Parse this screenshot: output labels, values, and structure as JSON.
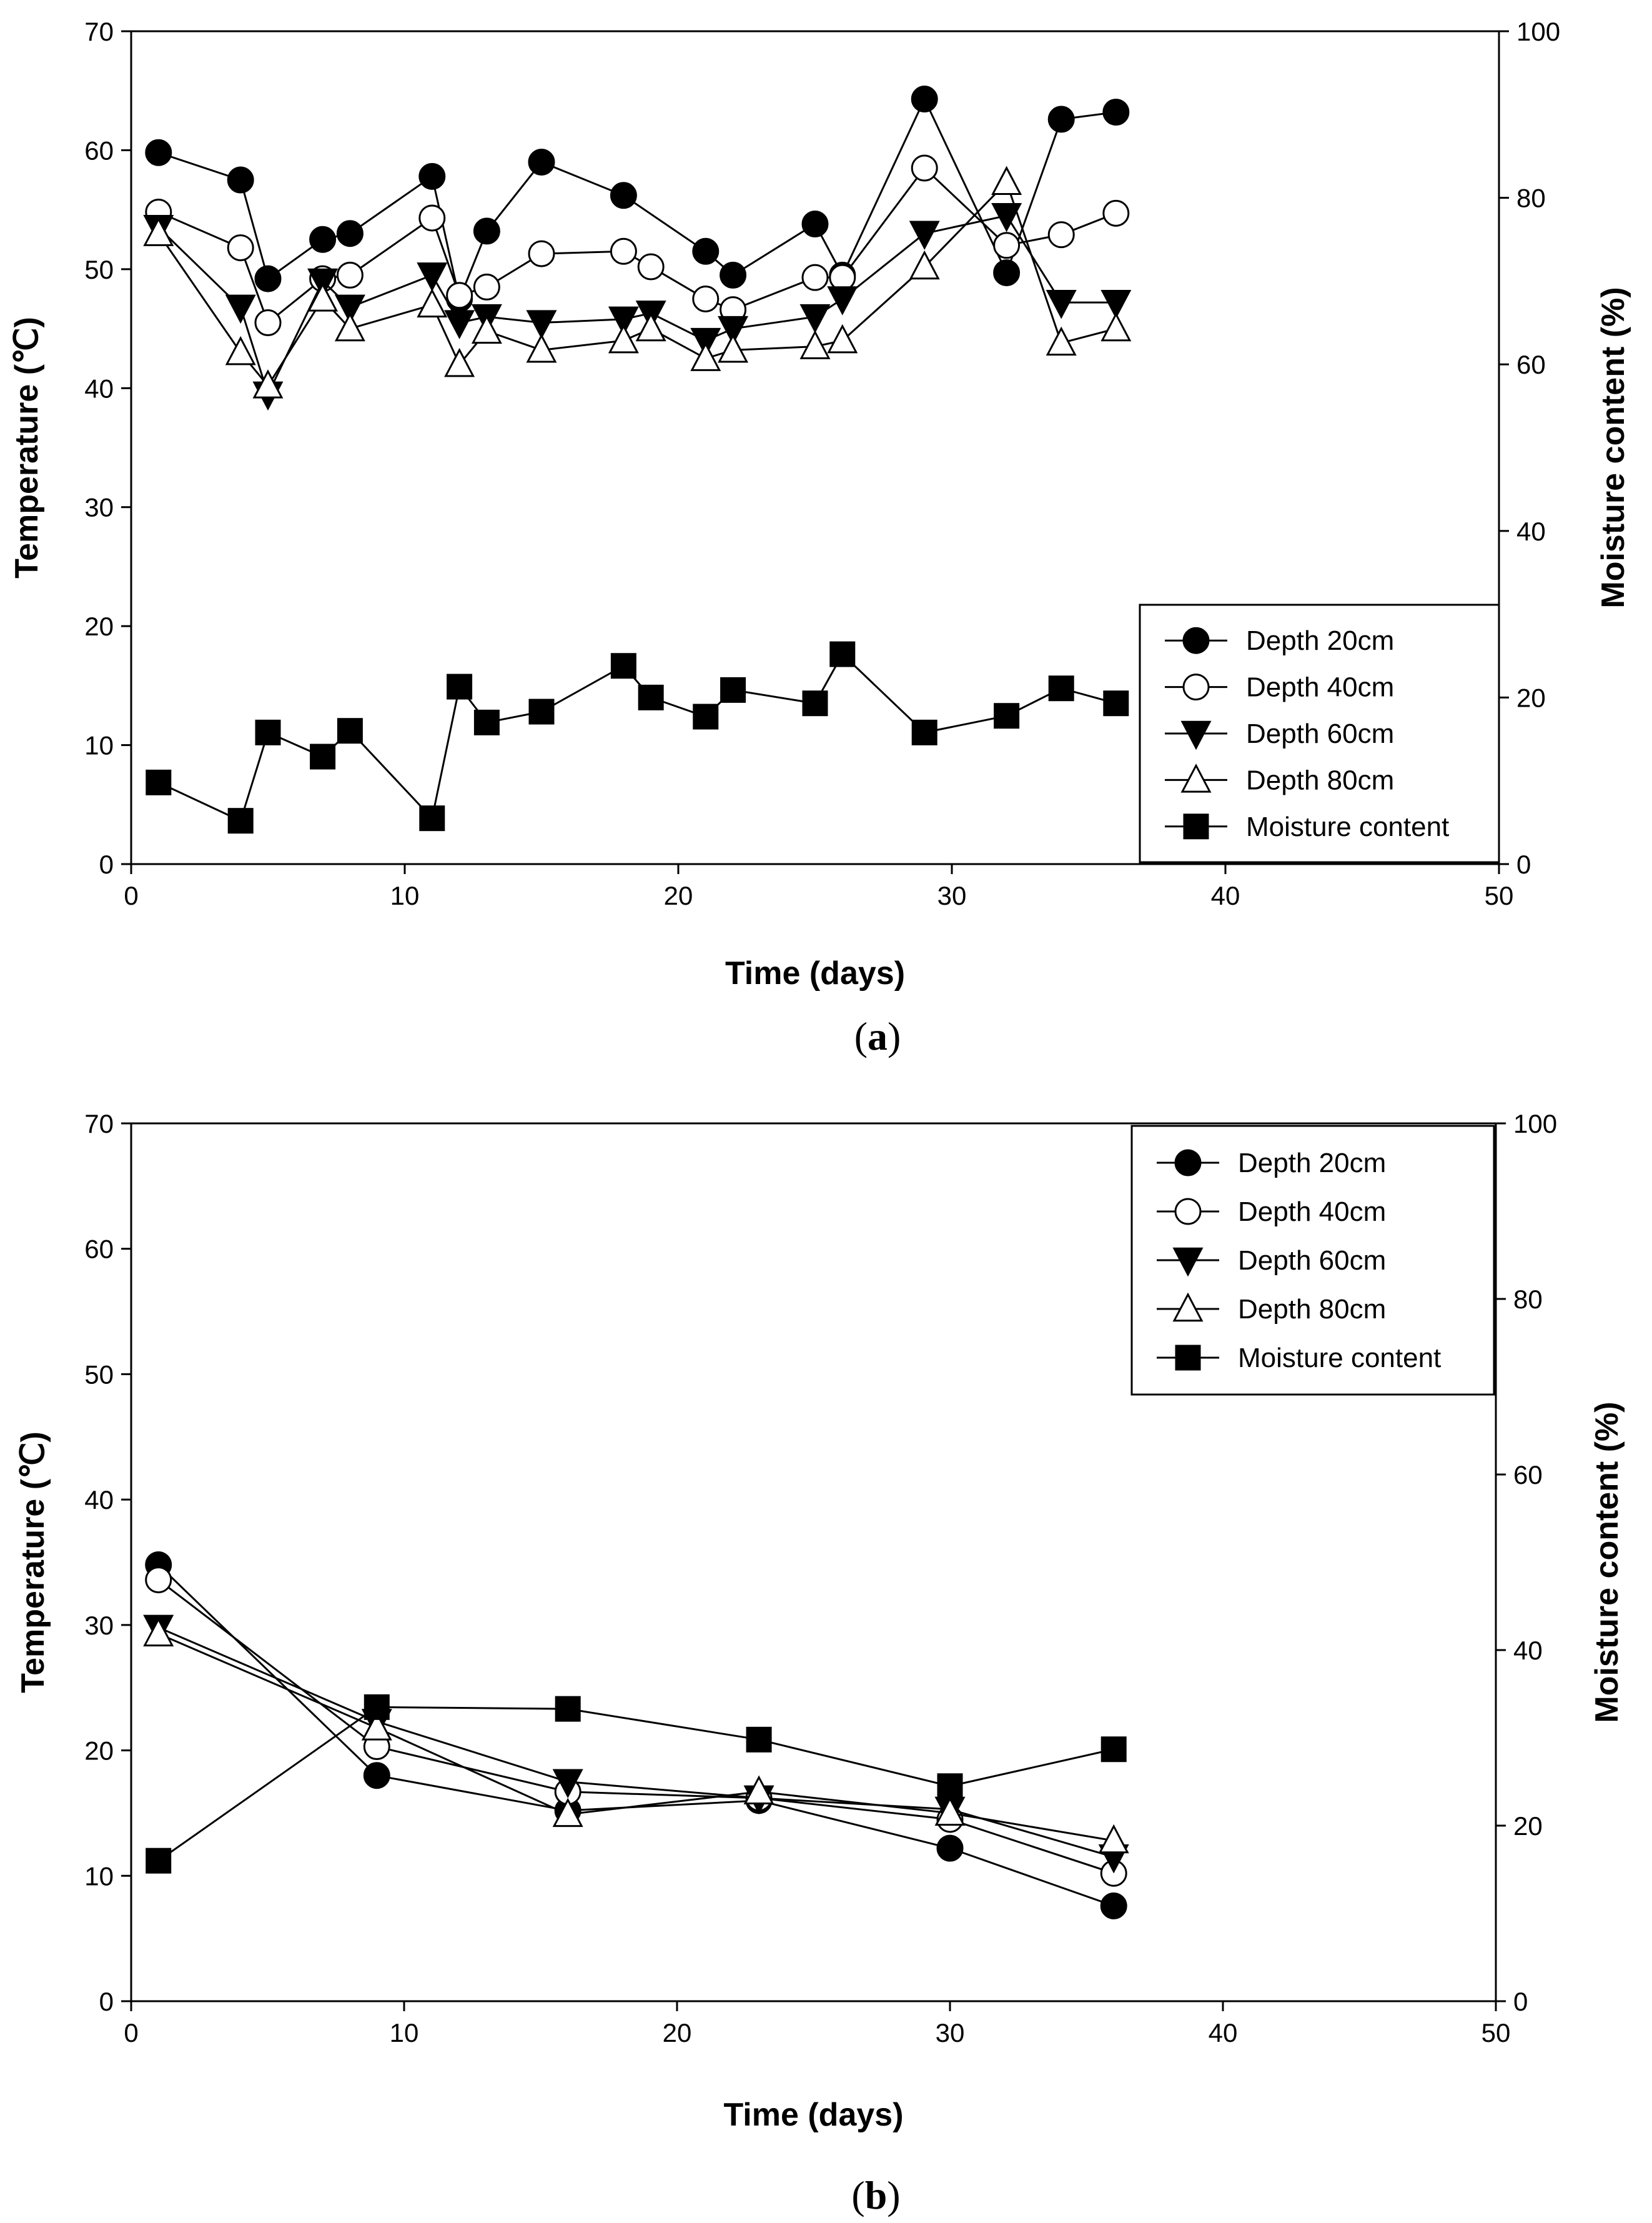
{
  "chart_data": [
    {
      "type": "line",
      "panel_label": "a",
      "xlabel": "Time (days)",
      "ylabel": "Temperature (℃)",
      "y2label": "Moisture content (%)",
      "xlim": [
        0,
        50
      ],
      "ylim": [
        0,
        70
      ],
      "y2lim": [
        0,
        100
      ],
      "xticks": [
        0,
        10,
        20,
        30,
        40,
        50
      ],
      "yticks": [
        0,
        10,
        20,
        30,
        40,
        50,
        60,
        70
      ],
      "y2ticks": [
        0,
        20,
        40,
        60,
        80,
        100
      ],
      "grid": false,
      "legend_position": "bottom-right",
      "series": [
        {
          "name": "Depth 20cm",
          "axis": "left",
          "marker": "circle-filled",
          "x": [
            1,
            4,
            5,
            7,
            8,
            11,
            12,
            13,
            15,
            18,
            21,
            22,
            25,
            26,
            29,
            32,
            34,
            36
          ],
          "y": [
            59.8,
            57.5,
            49.2,
            52.5,
            53.0,
            57.8,
            47.5,
            53.2,
            59.0,
            56.2,
            51.5,
            49.5,
            53.8,
            49.5,
            64.3,
            49.7,
            62.6,
            63.2
          ]
        },
        {
          "name": "Depth 40cm",
          "axis": "left",
          "marker": "circle-open",
          "x": [
            1,
            4,
            5,
            7,
            8,
            11,
            12,
            13,
            15,
            18,
            19,
            21,
            22,
            25,
            26,
            29,
            32,
            34,
            36
          ],
          "y": [
            54.8,
            51.8,
            45.5,
            49.2,
            49.5,
            54.3,
            47.8,
            48.5,
            51.3,
            51.5,
            50.2,
            47.5,
            46.6,
            49.3,
            49.3,
            58.5,
            52.0,
            52.9,
            54.7
          ]
        },
        {
          "name": "Depth 60cm",
          "axis": "left",
          "marker": "triangle-down-filled",
          "x": [
            1,
            4,
            5,
            7,
            8,
            11,
            12,
            13,
            15,
            18,
            19,
            21,
            22,
            25,
            26,
            29,
            32,
            34,
            36
          ],
          "y": [
            53.5,
            46.8,
            39.5,
            49.0,
            46.8,
            49.5,
            45.5,
            46.0,
            45.5,
            45.8,
            46.3,
            44.0,
            45.0,
            46.0,
            47.5,
            53.0,
            54.5,
            47.2,
            47.2
          ]
        },
        {
          "name": "Depth 80cm",
          "axis": "left",
          "marker": "triangle-up-open",
          "x": [
            1,
            4,
            5,
            7,
            8,
            11,
            12,
            13,
            15,
            18,
            19,
            21,
            22,
            25,
            26,
            29,
            32,
            34,
            36
          ],
          "y": [
            53.0,
            43.0,
            40.2,
            47.5,
            45.0,
            47.0,
            42.0,
            44.8,
            43.2,
            44.0,
            45.0,
            42.5,
            43.2,
            43.5,
            44.0,
            50.2,
            57.3,
            43.8,
            45.0
          ]
        },
        {
          "name": "Moisture content",
          "axis": "right",
          "marker": "square-filled",
          "x": [
            1,
            4,
            5,
            7,
            8,
            11,
            12,
            13,
            15,
            18,
            19,
            21,
            22,
            25,
            26,
            29,
            32,
            34,
            36
          ],
          "y": [
            9.8,
            5.2,
            15.8,
            12.9,
            16.0,
            5.5,
            21.3,
            17.0,
            18.3,
            23.8,
            20.0,
            17.7,
            20.9,
            19.3,
            25.2,
            15.8,
            17.8,
            21.1,
            19.3
          ]
        }
      ]
    },
    {
      "type": "line",
      "panel_label": "b",
      "xlabel": "Time (days)",
      "ylabel": "Temperature (℃)",
      "y2label": "Moisture content (%)",
      "xlim": [
        0,
        50
      ],
      "ylim": [
        0,
        70
      ],
      "y2lim": [
        0,
        100
      ],
      "xticks": [
        0,
        10,
        20,
        30,
        40,
        50
      ],
      "yticks": [
        0,
        10,
        20,
        30,
        40,
        50,
        60,
        70
      ],
      "y2ticks": [
        0,
        20,
        40,
        60,
        80,
        100
      ],
      "grid": false,
      "legend_position": "top-right",
      "series": [
        {
          "name": "Depth 20cm",
          "axis": "left",
          "marker": "circle-filled",
          "x": [
            1,
            9,
            16,
            23,
            30,
            36
          ],
          "y": [
            34.8,
            18.0,
            15.2,
            16.0,
            12.2,
            7.6
          ]
        },
        {
          "name": "Depth 40cm",
          "axis": "left",
          "marker": "circle-open",
          "x": [
            1,
            9,
            16,
            23,
            30,
            36
          ],
          "y": [
            33.6,
            20.3,
            16.7,
            16.2,
            14.5,
            10.2
          ]
        },
        {
          "name": "Depth 60cm",
          "axis": "left",
          "marker": "triangle-down-filled",
          "x": [
            1,
            9,
            16,
            23,
            30,
            36
          ],
          "y": [
            29.8,
            22.3,
            17.5,
            16.2,
            15.3,
            11.5
          ]
        },
        {
          "name": "Depth 80cm",
          "axis": "left",
          "marker": "triangle-up-open",
          "x": [
            1,
            9,
            16,
            23,
            30,
            36
          ],
          "y": [
            29.3,
            21.8,
            14.9,
            16.7,
            15.0,
            12.8
          ]
        },
        {
          "name": "Moisture content",
          "axis": "right",
          "marker": "square-filled",
          "x": [
            1,
            9,
            16,
            23,
            30,
            36
          ],
          "y": [
            16.0,
            33.5,
            33.3,
            29.8,
            24.5,
            28.7
          ]
        }
      ]
    }
  ]
}
